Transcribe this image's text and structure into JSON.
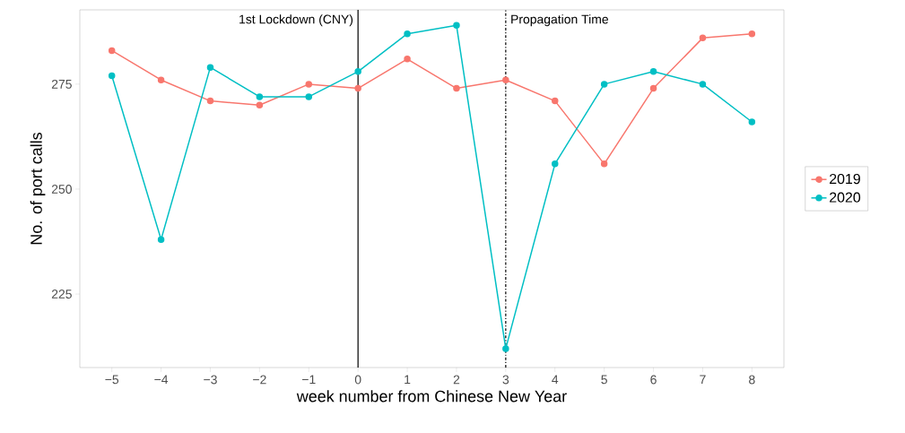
{
  "chart_data": {
    "type": "line",
    "xlabel": "week number from Chinese New Year",
    "ylabel": "No. of port calls",
    "x": [
      -5,
      -4,
      -3,
      -2,
      -1,
      0,
      1,
      2,
      3,
      4,
      5,
      6,
      7,
      8
    ],
    "series": [
      {
        "name": "2019",
        "color": "#f8766d",
        "values": [
          283,
          276,
          271,
          270,
          275,
          274,
          281,
          274,
          276,
          271,
          256,
          274,
          286,
          287
        ]
      },
      {
        "name": "2020",
        "color": "#00bfc4",
        "values": [
          277,
          238,
          279,
          272,
          272,
          278,
          287,
          289,
          212,
          256,
          275,
          278,
          275,
          266
        ]
      }
    ],
    "xlim": [
      -5.65,
      8.65
    ],
    "ylim": [
      207.5,
      292.7
    ],
    "xticks": [
      {
        "value": -5,
        "label": "−5"
      },
      {
        "value": -4,
        "label": "−4"
      },
      {
        "value": -3,
        "label": "−3"
      },
      {
        "value": -2,
        "label": "−2"
      },
      {
        "value": -1,
        "label": "−1"
      },
      0,
      1,
      2,
      3,
      4,
      5,
      6,
      7,
      8
    ],
    "yticks": [
      225,
      250,
      275
    ],
    "ref_lines": [
      {
        "axis": "x",
        "value": 0,
        "label": "1st Lockdown (CNY)",
        "color": "#000000",
        "line_style": "solid"
      },
      {
        "axis": "x",
        "value": 3,
        "label": "Propagation Time",
        "color": "#000000",
        "line_style": "dashdot"
      }
    ],
    "grid": false,
    "legend": "right",
    "marker": "circle",
    "line_style": "solid"
  }
}
